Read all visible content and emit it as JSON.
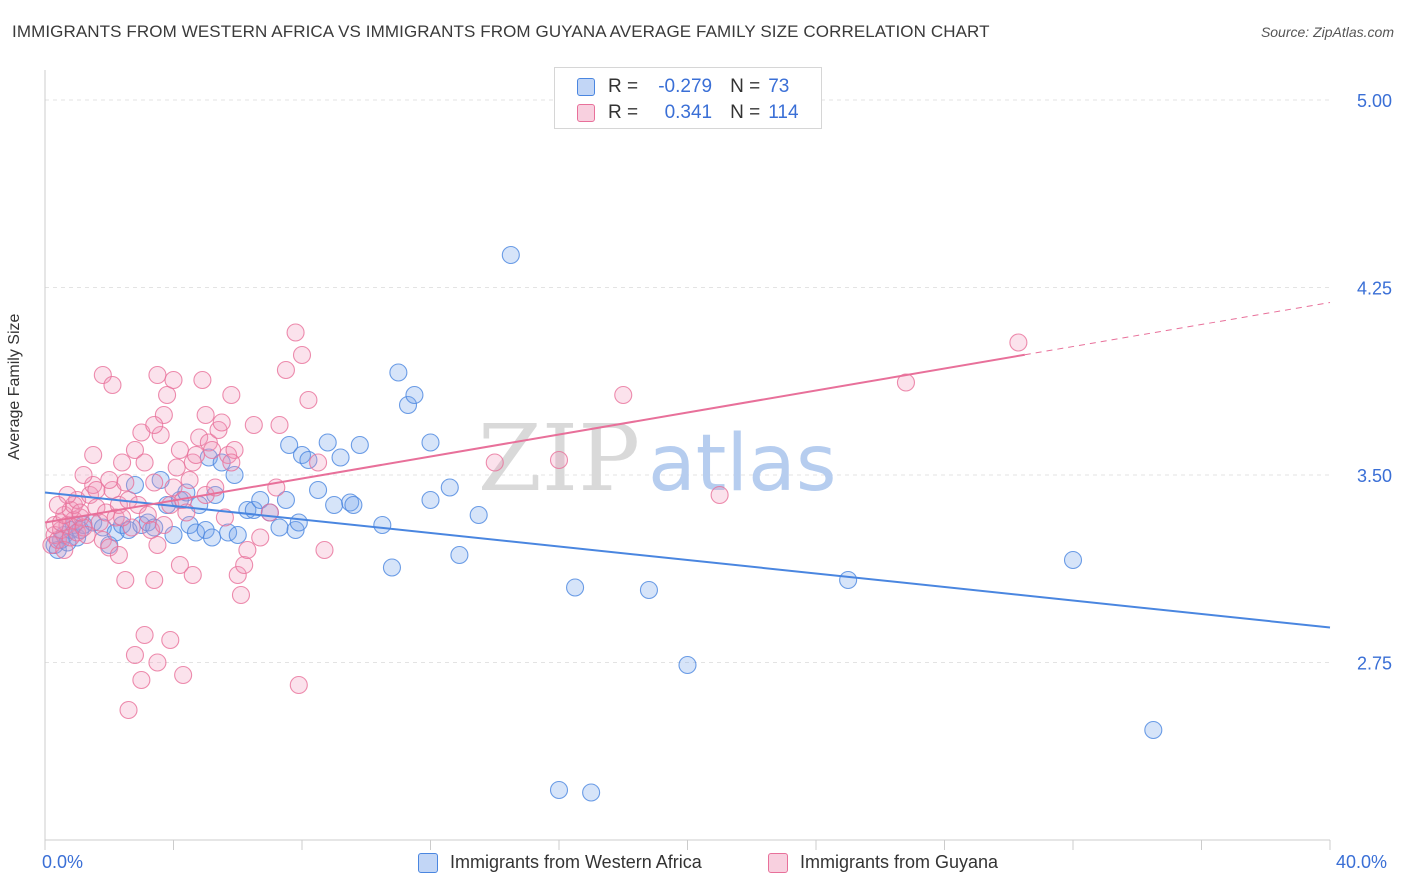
{
  "title": "IMMIGRANTS FROM WESTERN AFRICA VS IMMIGRANTS FROM GUYANA AVERAGE FAMILY SIZE CORRELATION CHART",
  "source": "Source: ZipAtlas.com",
  "watermark": {
    "zip": "ZIP",
    "atlas": "atlas"
  },
  "legend": {
    "r_label": "R =",
    "n_label": "N =",
    "rows": [
      {
        "r": "-0.279",
        "n": "73",
        "color": "#4a86e0"
      },
      {
        "r": "0.341",
        "n": "114",
        "color": "#e8709a"
      }
    ]
  },
  "chart_data": {
    "type": "scatter",
    "xlabel": "",
    "ylabel": "Average Family Size",
    "xlim": [
      0,
      40
    ],
    "ylim": [
      2.04,
      5.12
    ],
    "x_tick_labels": [
      "0.0%",
      "40.0%"
    ],
    "y_ticks": [
      2.75,
      3.5,
      4.25,
      5.0
    ],
    "y_tick_labels": [
      "2.75",
      "3.50",
      "4.25",
      "5.00"
    ],
    "grid": "horizontal dashed",
    "legend_position": "top-center",
    "series": [
      {
        "name": "Immigrants from Western Africa",
        "color": "#4a86e0",
        "fill": "rgba(120,165,235,0.30)",
        "trend": {
          "x": [
            0,
            40
          ],
          "y": [
            3.43,
            2.89
          ],
          "dashed_from": null
        },
        "points": [
          [
            0.3,
            3.22
          ],
          [
            0.5,
            3.24
          ],
          [
            0.6,
            3.26
          ],
          [
            0.8,
            3.28
          ],
          [
            0.9,
            3.3
          ],
          [
            1.0,
            3.25
          ],
          [
            1.1,
            3.28
          ],
          [
            0.4,
            3.2
          ],
          [
            0.7,
            3.23
          ],
          [
            1.2,
            3.3
          ],
          [
            1.5,
            3.31
          ],
          [
            1.8,
            3.29
          ],
          [
            2.0,
            3.22
          ],
          [
            2.2,
            3.27
          ],
          [
            2.4,
            3.3
          ],
          [
            2.6,
            3.28
          ],
          [
            2.8,
            3.46
          ],
          [
            3.0,
            3.3
          ],
          [
            3.2,
            3.31
          ],
          [
            3.4,
            3.29
          ],
          [
            3.6,
            3.48
          ],
          [
            3.8,
            3.38
          ],
          [
            4.0,
            3.26
          ],
          [
            4.2,
            3.4
          ],
          [
            4.4,
            3.43
          ],
          [
            4.5,
            3.3
          ],
          [
            4.7,
            3.27
          ],
          [
            4.8,
            3.38
          ],
          [
            5.0,
            3.28
          ],
          [
            5.1,
            3.57
          ],
          [
            5.2,
            3.25
          ],
          [
            5.3,
            3.42
          ],
          [
            5.5,
            3.55
          ],
          [
            5.7,
            3.27
          ],
          [
            5.9,
            3.5
          ],
          [
            6.0,
            3.26
          ],
          [
            6.3,
            3.36
          ],
          [
            6.5,
            3.36
          ],
          [
            6.7,
            3.4
          ],
          [
            7.0,
            3.35
          ],
          [
            7.3,
            3.29
          ],
          [
            7.5,
            3.4
          ],
          [
            7.6,
            3.62
          ],
          [
            7.8,
            3.28
          ],
          [
            7.9,
            3.31
          ],
          [
            8.0,
            3.58
          ],
          [
            8.2,
            3.56
          ],
          [
            8.5,
            3.44
          ],
          [
            8.8,
            3.63
          ],
          [
            9.0,
            3.38
          ],
          [
            9.2,
            3.57
          ],
          [
            9.5,
            3.39
          ],
          [
            9.6,
            3.38
          ],
          [
            9.8,
            3.62
          ],
          [
            10.5,
            3.3
          ],
          [
            10.8,
            3.13
          ],
          [
            11.0,
            3.91
          ],
          [
            11.3,
            3.78
          ],
          [
            11.5,
            3.82
          ],
          [
            12.0,
            3.4
          ],
          [
            12.6,
            3.45
          ],
          [
            12.9,
            3.18
          ],
          [
            13.5,
            3.34
          ],
          [
            14.5,
            4.38
          ],
          [
            16.0,
            2.24
          ],
          [
            16.5,
            3.05
          ],
          [
            17.0,
            2.23
          ],
          [
            18.8,
            3.04
          ],
          [
            20.0,
            2.74
          ],
          [
            25.0,
            3.08
          ],
          [
            32.0,
            3.16
          ],
          [
            34.5,
            2.48
          ],
          [
            12.0,
            3.63
          ]
        ]
      },
      {
        "name": "Immigrants from Guyana",
        "color": "#e8709a",
        "fill": "rgba(240,150,185,0.28)",
        "trend": {
          "x": [
            0,
            40
          ],
          "y": [
            3.31,
            4.19
          ],
          "dashed_from": 30.5
        },
        "points": [
          [
            0.2,
            3.22
          ],
          [
            0.3,
            3.26
          ],
          [
            0.4,
            3.24
          ],
          [
            0.5,
            3.28
          ],
          [
            0.6,
            3.2
          ],
          [
            0.7,
            3.3
          ],
          [
            0.8,
            3.25
          ],
          [
            0.9,
            3.32
          ],
          [
            1.0,
            3.27
          ],
          [
            1.1,
            3.33
          ],
          [
            0.3,
            3.3
          ],
          [
            0.5,
            3.31
          ],
          [
            0.6,
            3.34
          ],
          [
            0.8,
            3.36
          ],
          [
            0.9,
            3.38
          ],
          [
            1.0,
            3.4
          ],
          [
            1.2,
            3.29
          ],
          [
            1.3,
            3.26
          ],
          [
            1.4,
            3.42
          ],
          [
            1.5,
            3.46
          ],
          [
            1.6,
            3.37
          ],
          [
            1.7,
            3.31
          ],
          [
            1.8,
            3.24
          ],
          [
            1.9,
            3.35
          ],
          [
            2.0,
            3.21
          ],
          [
            2.1,
            3.44
          ],
          [
            2.2,
            3.33
          ],
          [
            2.3,
            3.38
          ],
          [
            2.4,
            3.55
          ],
          [
            2.5,
            3.47
          ],
          [
            2.6,
            3.4
          ],
          [
            2.7,
            3.29
          ],
          [
            2.8,
            3.6
          ],
          [
            2.9,
            3.38
          ],
          [
            3.0,
            3.67
          ],
          [
            3.1,
            3.55
          ],
          [
            3.2,
            3.34
          ],
          [
            3.3,
            3.28
          ],
          [
            3.4,
            3.47
          ],
          [
            3.5,
            3.22
          ],
          [
            3.6,
            3.66
          ],
          [
            3.7,
            3.74
          ],
          [
            3.8,
            3.82
          ],
          [
            3.9,
            3.38
          ],
          [
            4.0,
            3.45
          ],
          [
            4.1,
            3.53
          ],
          [
            4.2,
            3.6
          ],
          [
            4.3,
            3.4
          ],
          [
            4.4,
            3.35
          ],
          [
            4.5,
            3.48
          ],
          [
            4.6,
            3.55
          ],
          [
            4.7,
            3.58
          ],
          [
            4.8,
            3.65
          ],
          [
            4.9,
            3.88
          ],
          [
            5.0,
            3.42
          ],
          [
            5.1,
            3.63
          ],
          [
            5.2,
            3.6
          ],
          [
            5.3,
            3.45
          ],
          [
            5.4,
            3.68
          ],
          [
            5.5,
            3.71
          ],
          [
            5.6,
            3.33
          ],
          [
            5.7,
            3.58
          ],
          [
            5.8,
            3.82
          ],
          [
            5.9,
            3.6
          ],
          [
            6.0,
            3.1
          ],
          [
            6.1,
            3.02
          ],
          [
            6.2,
            3.14
          ],
          [
            6.3,
            3.2
          ],
          [
            6.5,
            3.7
          ],
          [
            6.7,
            3.25
          ],
          [
            7.0,
            3.35
          ],
          [
            7.3,
            3.7
          ],
          [
            7.5,
            3.92
          ],
          [
            7.8,
            4.07
          ],
          [
            8.0,
            3.98
          ],
          [
            8.2,
            3.8
          ],
          [
            8.5,
            3.55
          ],
          [
            8.7,
            3.2
          ],
          [
            3.5,
            3.9
          ],
          [
            2.5,
            3.08
          ],
          [
            2.8,
            2.78
          ],
          [
            3.0,
            2.68
          ],
          [
            3.5,
            2.75
          ],
          [
            3.9,
            2.84
          ],
          [
            4.3,
            2.7
          ],
          [
            2.6,
            2.56
          ],
          [
            3.1,
            2.86
          ],
          [
            3.4,
            3.08
          ],
          [
            4.2,
            3.14
          ],
          [
            4.6,
            3.1
          ],
          [
            1.8,
            3.9
          ],
          [
            2.1,
            3.86
          ],
          [
            3.4,
            3.7
          ],
          [
            5.8,
            3.55
          ],
          [
            7.2,
            3.45
          ],
          [
            7.9,
            2.66
          ],
          [
            14.0,
            3.55
          ],
          [
            16.0,
            3.56
          ],
          [
            18.0,
            3.82
          ],
          [
            21.0,
            3.42
          ],
          [
            26.8,
            3.87
          ],
          [
            30.3,
            4.03
          ],
          [
            1.2,
            3.5
          ],
          [
            1.5,
            3.58
          ],
          [
            2.0,
            3.48
          ],
          [
            2.3,
            3.18
          ],
          [
            3.7,
            3.3
          ],
          [
            4.0,
            3.88
          ],
          [
            2.4,
            3.33
          ],
          [
            1.1,
            3.35
          ],
          [
            0.7,
            3.42
          ],
          [
            1.6,
            3.44
          ],
          [
            0.4,
            3.38
          ],
          [
            5.0,
            3.74
          ]
        ]
      }
    ]
  },
  "bottom_legend": [
    {
      "label": "Immigrants from Western Africa",
      "color": "#4a86e0"
    },
    {
      "label": "Immigrants from Guyana",
      "color": "#e8709a"
    }
  ]
}
